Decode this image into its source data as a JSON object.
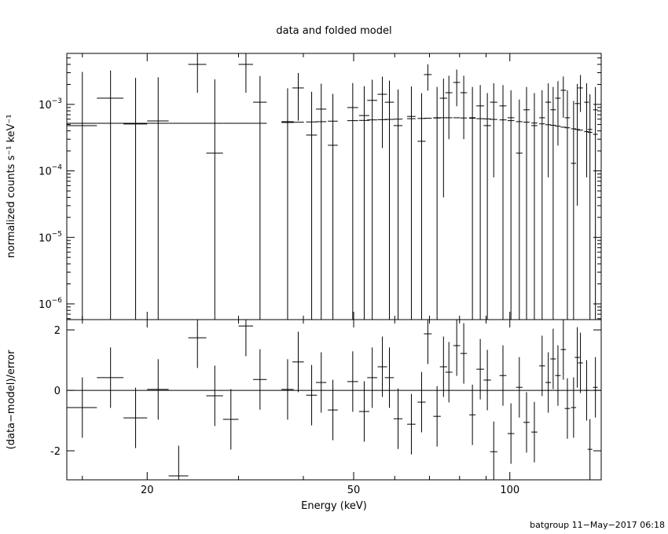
{
  "chart_data": [
    {
      "type": "errorbar",
      "title": "data and folded model",
      "ylabel": "normalized counts s⁻¹ keV⁻¹",
      "log_y": true,
      "log_x": true,
      "xlim": [
        14,
        150
      ],
      "xticks": [
        20,
        50,
        100
      ],
      "xminor_ticks": [
        15,
        30,
        40,
        60,
        70,
        80,
        90
      ],
      "ylim": [
        5.8e-07,
        0.00585
      ],
      "yticks": [
        {
          "value": 1e-06,
          "label": "10",
          "exponent": "−6"
        },
        {
          "value": 1e-05,
          "label": "10",
          "exponent": "−5"
        },
        {
          "value": 0.0001,
          "label": "10",
          "exponent": "−4"
        },
        {
          "value": 0.001,
          "label": "10",
          "exponent": "−3"
        }
      ],
      "color": "#000000",
      "x": [
        15,
        17,
        19,
        21,
        23,
        25,
        27,
        29,
        31,
        33,
        37.3,
        39.1,
        41.5,
        43.3,
        45.6,
        49.8,
        52.4,
        54.3,
        56.8,
        58.6,
        60.9,
        64.6,
        67.6,
        69.5,
        72.4,
        74.5,
        76.3,
        79,
        81.5,
        84.7,
        87.7,
        90.5,
        93.1,
        97,
        100.5,
        104.3,
        107.7,
        111.5,
        115.4,
        118.6,
        121.2,
        123.8,
        126.8,
        129.1,
        132.7,
        134.9,
        136.8,
        140.6,
        142.7,
        146.2
      ],
      "xerr": [
        1,
        1,
        1,
        1,
        1,
        1,
        1,
        1,
        1,
        1,
        1,
        1,
        1,
        1,
        1,
        1.2,
        1.2,
        1.2,
        1.2,
        1.2,
        1.2,
        1.2,
        1.2,
        1.2,
        1.2,
        1.2,
        1.2,
        1.2,
        1.2,
        1.2,
        1.5,
        1.5,
        1.5,
        1.5,
        1.5,
        1.5,
        1.5,
        1.5,
        1.5,
        1.5,
        1.5,
        1.5,
        1.5,
        1.5,
        1.5,
        1.5,
        1.5,
        1.5,
        1.5,
        1.5
      ],
      "values": [
        0.00048,
        0.00124,
        0.000507,
        0.000565,
        null,
        0.004,
        0.000185,
        null,
        0.004,
        0.00108,
        0.00055,
        0.00177,
        0.000346,
        0.00085,
        0.000243,
        0.000897,
        0.00068,
        0.00115,
        0.00142,
        0.00108,
        0.00048,
        0.00066,
        0.000279,
        0.00281,
        0.00063,
        0.00124,
        0.0015,
        0.00214,
        0.0015,
        0.00063,
        0.00095,
        0.00048,
        0.00108,
        0.00095,
        0.00063,
        0.000185,
        0.00083,
        0.00048,
        0.00063,
        0.00108,
        0.00083,
        0.00124,
        0.00163,
        0.00063,
        0.00013,
        0.00103,
        0.00177,
        0.00108,
        0.00042,
        0.00083
      ],
      "errors": [
        0.0026,
        0.002,
        0.002,
        0.002,
        null,
        0.0025,
        0.0022,
        null,
        0.0025,
        0.0016,
        0.0012,
        0.0012,
        0.0012,
        0.0012,
        0.0012,
        0.0012,
        0.0012,
        0.0012,
        0.0012,
        0.0012,
        0.0012,
        0.0012,
        0.0012,
        0.0012,
        0.0012,
        0.0012,
        0.0012,
        0.0012,
        0.0012,
        0.0012,
        0.001,
        0.001,
        0.001,
        0.001,
        0.001,
        0.001,
        0.001,
        0.001,
        0.001,
        0.001,
        0.001,
        0.001,
        0.001,
        0.001,
        0.001,
        0.001,
        0.001,
        0.001,
        0.001,
        0.001
      ],
      "model": {
        "color": "#000000",
        "values": [
          0.00052,
          0.00052,
          0.00052,
          0.00052,
          0.00052,
          0.00052,
          0.00052,
          0.00052,
          0.00052,
          0.00052,
          0.000535,
          0.00054,
          0.000545,
          0.00055,
          0.00056,
          0.00057,
          0.000575,
          0.000585,
          0.00059,
          0.000595,
          0.0006,
          0.00061,
          0.000615,
          0.00062,
          0.000625,
          0.00063,
          0.00063,
          0.00063,
          0.000625,
          0.00062,
          0.00061,
          0.000605,
          0.000595,
          0.000585,
          0.00057,
          0.00055,
          0.00054,
          0.000525,
          0.00051,
          0.000495,
          0.000485,
          0.00047,
          0.000455,
          0.000445,
          0.00043,
          0.00042,
          0.00041,
          0.00039,
          0.00038,
          0.000355
        ]
      }
    },
    {
      "type": "errorbar",
      "ylabel": "(data−model)/error",
      "xlabel": "Energy (keV)",
      "ylim": [
        -2.96,
        2.34
      ],
      "yticks": [
        -2,
        0,
        2
      ],
      "zero_line_color": "#00cc00",
      "color": "#000000",
      "values": [
        -0.57,
        0.42,
        -0.91,
        0.03,
        -2.83,
        1.74,
        -0.18,
        -0.96,
        2.13,
        0.36,
        0.03,
        0.94,
        -0.16,
        0.26,
        -0.65,
        0.29,
        -0.7,
        0.42,
        0.78,
        0.42,
        -0.94,
        -1.12,
        -0.39,
        1.87,
        -0.86,
        0.78,
        0.6,
        1.48,
        1.22,
        -0.81,
        0.7,
        0.34,
        -2.03,
        0.49,
        -1.43,
        0.1,
        -1.06,
        -1.38,
        0.81,
        0.26,
        1.04,
        0.49,
        1.35,
        -0.6,
        -0.57,
        1.09,
        0.91,
        0,
        -1.95,
        0.1
      ],
      "errors": [
        1,
        1,
        1,
        1,
        1,
        1,
        1,
        1,
        1,
        1,
        1,
        1,
        1,
        1,
        1,
        1,
        1,
        1,
        1,
        1,
        1,
        1,
        1,
        1,
        1,
        1,
        1,
        1,
        1,
        1,
        1,
        1,
        1,
        1,
        1,
        1,
        1,
        1,
        1,
        1,
        1,
        1,
        1,
        1,
        1,
        1,
        1,
        1,
        1,
        1
      ]
    }
  ],
  "footer": "batgroup 11−May−2017 06:18"
}
